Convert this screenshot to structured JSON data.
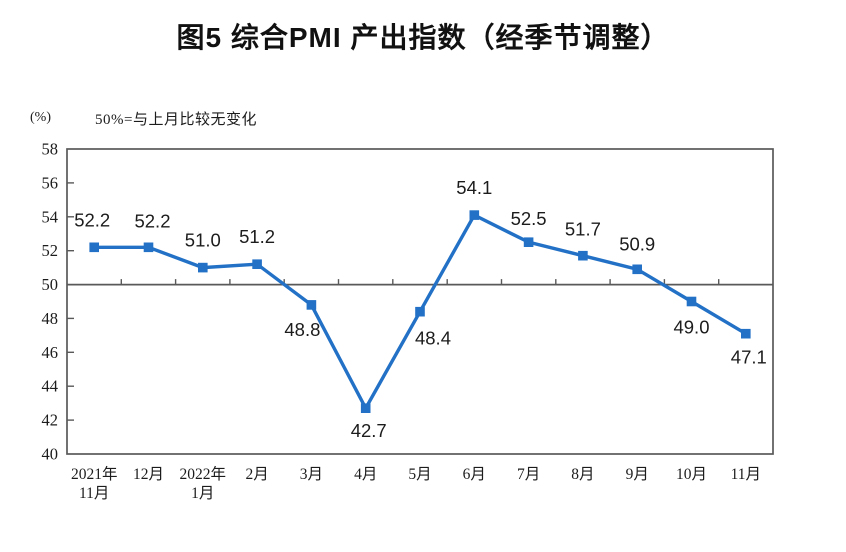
{
  "chart_data": {
    "type": "line",
    "title": "图5 综合PMI 产出指数（经季节调整）",
    "unit_label": "(%)",
    "note": "50%=与上月比较无变化",
    "categories": [
      "2021年\n11月",
      "12月",
      "2022年\n1月",
      "2月",
      "3月",
      "4月",
      "5月",
      "6月",
      "7月",
      "8月",
      "9月",
      "10月",
      "11月"
    ],
    "values": [
      52.2,
      52.2,
      51.0,
      51.2,
      48.8,
      42.7,
      48.4,
      54.1,
      52.5,
      51.7,
      50.9,
      49.0,
      47.1
    ],
    "ylim": [
      40,
      58
    ],
    "ytick_step": 2,
    "reference_line": 50,
    "legend": "none",
    "grid": "off",
    "line_color": "#2271C6",
    "axis_color": "#595959",
    "label_color": "#1c1c1c",
    "marker": "square"
  }
}
